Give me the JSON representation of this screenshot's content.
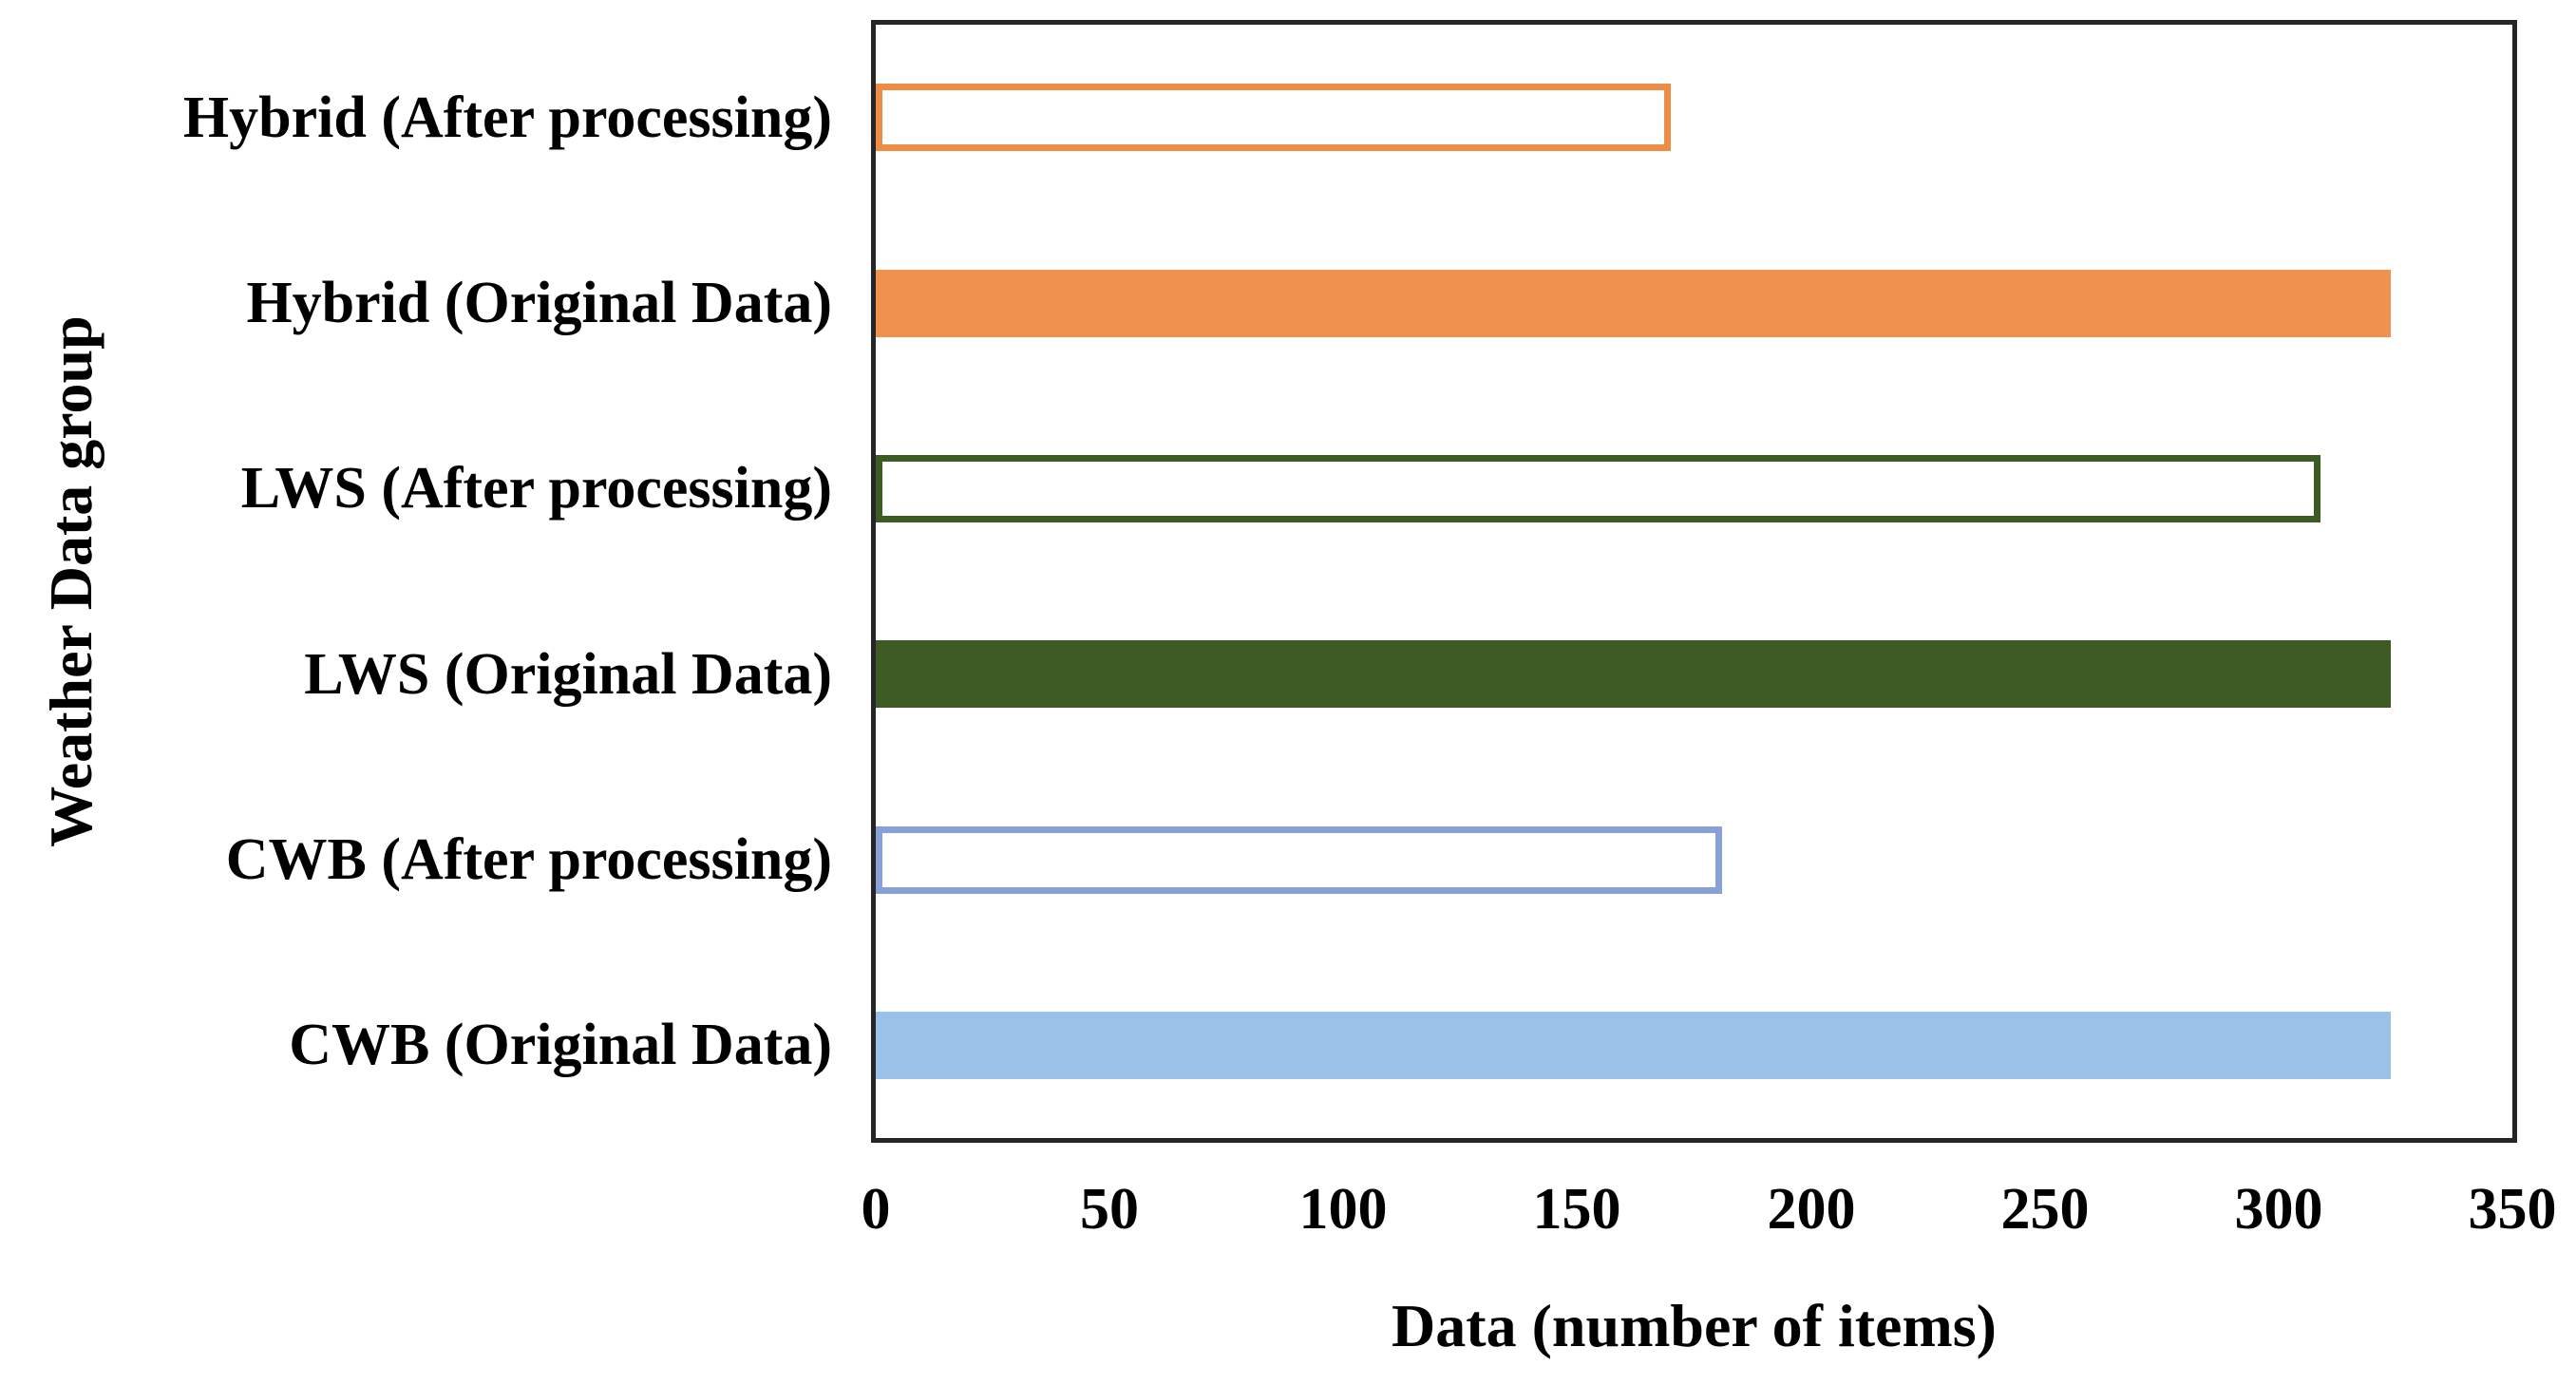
{
  "chart_data": {
    "type": "bar",
    "orientation": "horizontal",
    "title": "",
    "xlabel": "Data (number of items)",
    "ylabel": "Weather Data group",
    "xlim": [
      0,
      350
    ],
    "xticks": [
      0,
      50,
      100,
      150,
      200,
      250,
      300,
      350
    ],
    "grid": false,
    "legend": false,
    "categories": [
      "Hybrid (After processing)",
      "Hybrid (Original Data)",
      "LWS (After processing)",
      "LWS (Original Data)",
      "CWB (After processing)",
      "CWB (Original Data)"
    ],
    "values": [
      170,
      324,
      309,
      324,
      181,
      324
    ],
    "bar_styles": [
      {
        "variant": "outlined",
        "color": "#EE8C45"
      },
      {
        "variant": "filled",
        "color": "#F0924E"
      },
      {
        "variant": "outlined",
        "color": "#3B5B23"
      },
      {
        "variant": "filled",
        "color": "#3B5B23"
      },
      {
        "variant": "outlined",
        "color": "#87A0D8"
      },
      {
        "variant": "filled",
        "color": "#9AC1E7"
      }
    ]
  },
  "colors": {
    "frame": "#262626",
    "text": "#000000",
    "background": "#ffffff",
    "orange_fill": "#F0924E",
    "orange_outline": "#EE8C45",
    "green_fill": "#3B5B23",
    "green_outline": "#3B5B23",
    "blue_fill": "#9AC1E7",
    "blue_outline": "#87A0D8"
  }
}
